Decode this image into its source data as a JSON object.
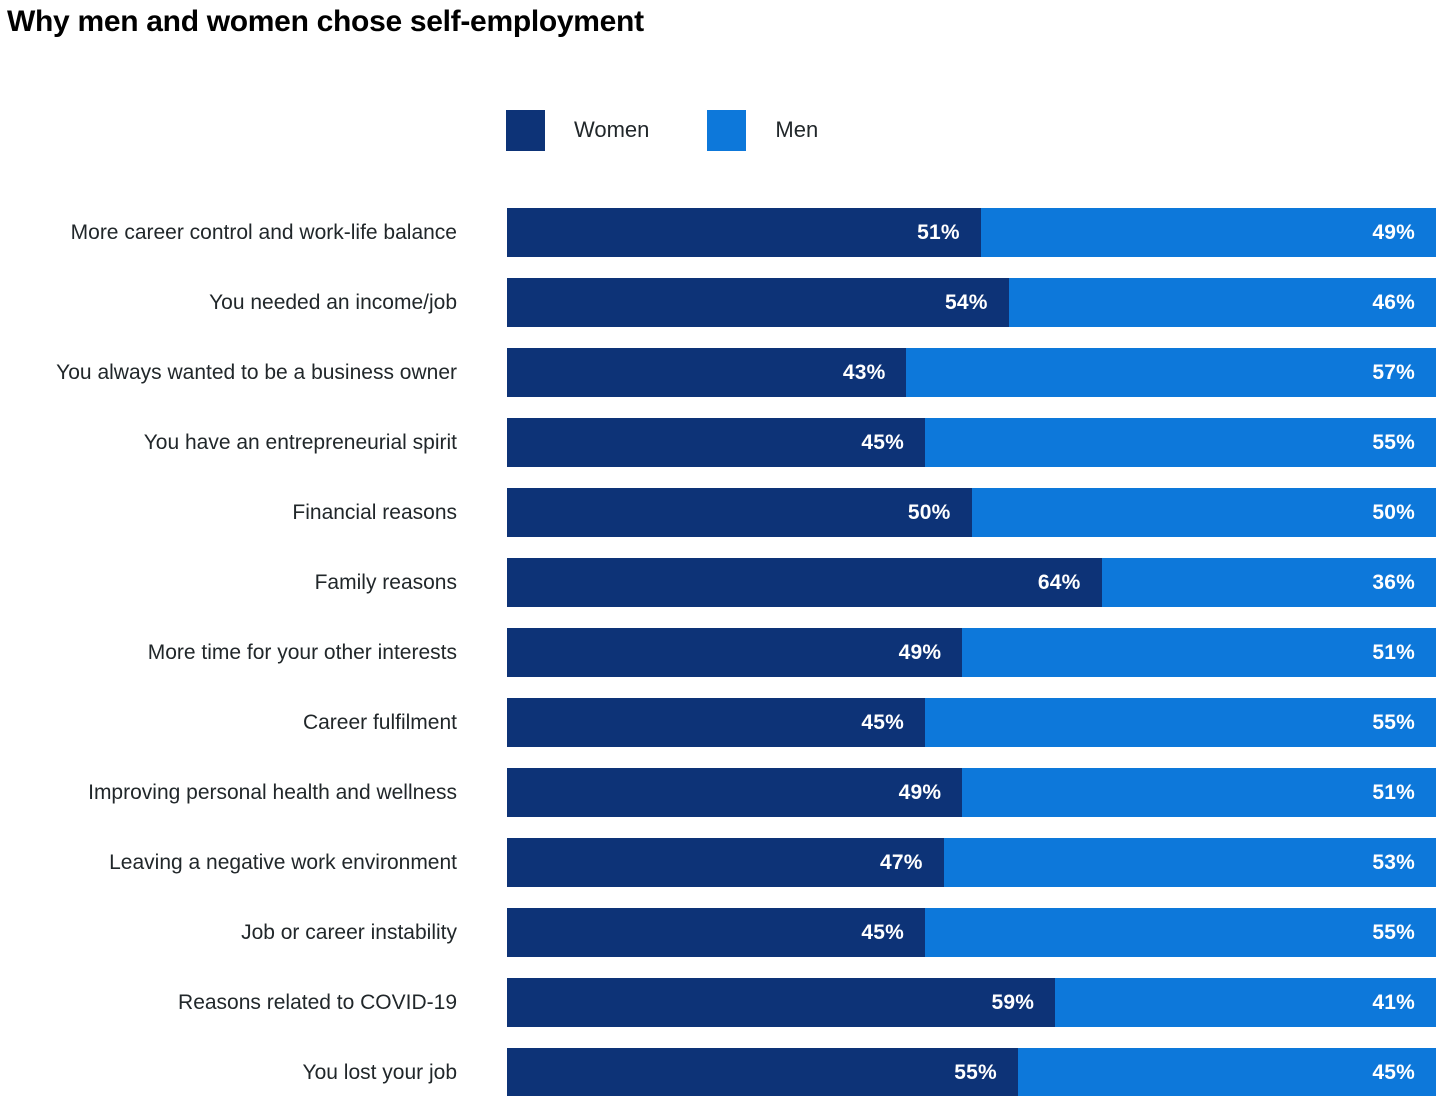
{
  "title": "Why men and women chose self-employment",
  "legend": {
    "items": [
      {
        "label": "Women",
        "color": "#0d3377"
      },
      {
        "label": "Men",
        "color": "#0d78da"
      }
    ]
  },
  "chart_data": {
    "type": "bar",
    "variant": "horizontal-stacked-100",
    "title": "Why men and women chose self-employment",
    "categories": [
      "More career control and work-life balance",
      "You needed an income/job",
      "You always wanted to be a business owner",
      "You have an entrepreneurial spirit",
      "Financial reasons",
      "Family reasons",
      "More time for your other interests",
      "Career fulfilment",
      "Improving personal health and wellness",
      "Leaving a negative work environment",
      "Job or career instability",
      "Reasons related to COVID-19",
      "You lost your job"
    ],
    "series": [
      {
        "name": "Women",
        "color": "#0d3377",
        "values": [
          51,
          54,
          43,
          45,
          50,
          64,
          49,
          45,
          49,
          47,
          45,
          59,
          55
        ]
      },
      {
        "name": "Men",
        "color": "#0d78da",
        "values": [
          49,
          46,
          57,
          55,
          50,
          36,
          51,
          55,
          51,
          53,
          55,
          41,
          45
        ]
      }
    ],
    "value_suffix": "%",
    "xlim": [
      0,
      100
    ],
    "grid": false,
    "legend_position": "top",
    "value_label_color": "#ffffff",
    "category_label_color": "#21272a"
  },
  "layout_numbers": {
    "first_row_top": 208,
    "row_pitch": 70
  }
}
